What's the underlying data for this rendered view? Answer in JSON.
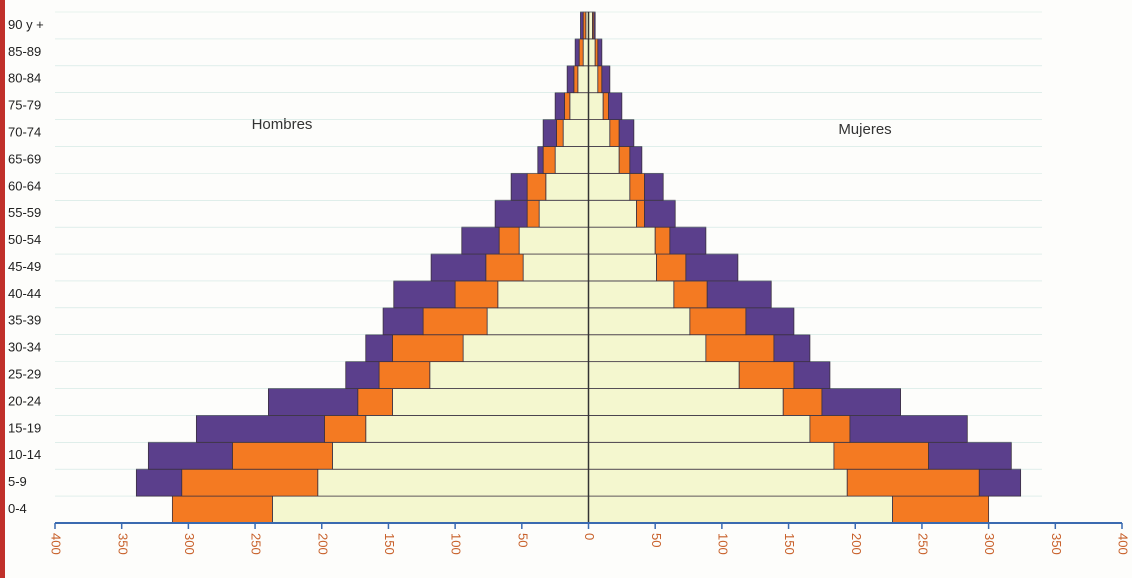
{
  "chart_data": {
    "type": "population_pyramid",
    "categories": [
      "0-4",
      "5-9",
      "10-14",
      "15-19",
      "20-24",
      "25-29",
      "30-34",
      "35-39",
      "40-44",
      "45-49",
      "50-54",
      "55-59",
      "60-64",
      "65-69",
      "70-74",
      "75-79",
      "80-84",
      "85-89",
      "90 y +"
    ],
    "left": {
      "label": "Hombres",
      "series": [
        {
          "color": "#f4f7cf",
          "values": [
            237,
            203,
            192,
            167,
            147,
            119,
            94,
            76,
            68,
            49,
            52,
            37,
            32,
            25,
            19,
            14,
            8,
            4,
            2
          ]
        },
        {
          "color": "#f47a22",
          "values": [
            75,
            102,
            75,
            31,
            26,
            38,
            53,
            48,
            32,
            28,
            15,
            9,
            14,
            9,
            5,
            4,
            3,
            3,
            2
          ]
        },
        {
          "color": "#5b3f8c",
          "values": [
            0,
            34,
            63,
            96,
            67,
            25,
            20,
            30,
            46,
            41,
            28,
            24,
            12,
            4,
            10,
            7,
            5,
            3,
            2
          ]
        }
      ]
    },
    "right": {
      "label": "Mujeres",
      "series": [
        {
          "color": "#f4f7cf",
          "values": [
            228,
            194,
            184,
            166,
            146,
            113,
            88,
            76,
            64,
            51,
            50,
            36,
            31,
            23,
            16,
            11,
            7,
            5,
            3
          ]
        },
        {
          "color": "#f47a22",
          "values": [
            72,
            99,
            71,
            30,
            29,
            41,
            51,
            42,
            25,
            22,
            11,
            6,
            11,
            8,
            7,
            4,
            3,
            2,
            1
          ]
        },
        {
          "color": "#5b3f8c",
          "values": [
            0,
            31,
            62,
            88,
            59,
            27,
            27,
            36,
            48,
            39,
            27,
            23,
            14,
            9,
            11,
            10,
            6,
            3,
            1
          ]
        }
      ]
    },
    "xlim": [
      -400,
      400
    ],
    "xticks": [
      {
        "value": -400,
        "label": "400"
      },
      {
        "value": -350,
        "label": "350"
      },
      {
        "value": -300,
        "label": "300"
      },
      {
        "value": -250,
        "label": "250"
      },
      {
        "value": -200,
        "label": "200"
      },
      {
        "value": -150,
        "label": "150"
      },
      {
        "value": -100,
        "label": "100"
      },
      {
        "value": -50,
        "label": "50"
      },
      0,
      50,
      100,
      150,
      200,
      250,
      300,
      350,
      400
    ]
  }
}
